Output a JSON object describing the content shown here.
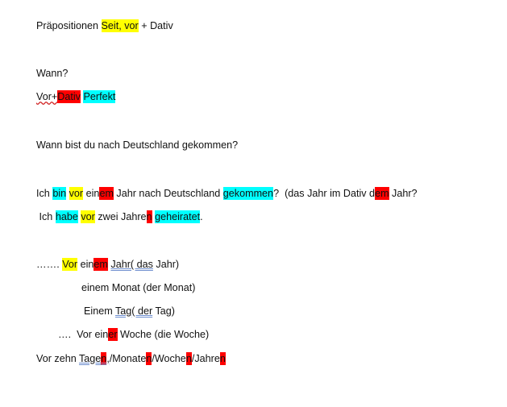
{
  "lines": [
    {
      "segments": [
        {
          "t": "Präpositionen "
        },
        {
          "t": "Seit, vor",
          "hl": "y"
        },
        {
          "t": " + Dativ"
        }
      ]
    },
    {
      "segments": [
        {
          "t": "Wann?"
        }
      ]
    },
    {
      "segments": [
        {
          "t": "Vor+",
          "ul": "wavy"
        },
        {
          "t": "Dativ",
          "hl": "r"
        },
        {
          "t": " "
        },
        {
          "t": "Perfekt",
          "hl": "c"
        }
      ]
    },
    {
      "segments": [
        {
          "t": "Wann bist du nach Deutschland gekommen?"
        }
      ]
    },
    {
      "segments": [
        {
          "t": "Ich "
        },
        {
          "t": "bin",
          "hl": "c"
        },
        {
          "t": " "
        },
        {
          "t": "vor",
          "hl": "y"
        },
        {
          "t": " ein"
        },
        {
          "t": "em",
          "hl": "r"
        },
        {
          "t": " Jahr nach Deutschland "
        },
        {
          "t": "gekommen",
          "hl": "c"
        },
        {
          "t": "?  (das Jahr im Dativ d"
        },
        {
          "t": "em",
          "hl": "r"
        },
        {
          "t": " Jahr?"
        }
      ]
    },
    {
      "segments": [
        {
          "t": " Ich "
        },
        {
          "t": "habe",
          "hl": "c"
        },
        {
          "t": " "
        },
        {
          "t": "vor",
          "hl": "y"
        },
        {
          "t": " zwei Jahre"
        },
        {
          "t": "n",
          "hl": "r"
        },
        {
          "t": " "
        },
        {
          "t": "geheiratet",
          "hl": "c"
        },
        {
          "t": "."
        }
      ]
    },
    {
      "segments": [
        {
          "t": "……. "
        },
        {
          "t": "Vor",
          "hl": "y"
        },
        {
          "t": " ein"
        },
        {
          "t": "em",
          "hl": "r"
        },
        {
          "t": " "
        },
        {
          "t": "Jahr( das",
          "ul": "dbl"
        },
        {
          "t": " Jahr)"
        }
      ]
    },
    {
      "segments": [
        {
          "t": "einem Monat (der Monat)"
        }
      ]
    },
    {
      "segments": [
        {
          "t": "Einem "
        },
        {
          "t": "Tag( der",
          "ul": "dbl"
        },
        {
          "t": " Tag)"
        }
      ]
    },
    {
      "segments": [
        {
          "t": "….  Vor ein"
        },
        {
          "t": "er",
          "hl": "r"
        },
        {
          "t": " Woche (die Woche)"
        }
      ]
    },
    {
      "segments": [
        {
          "t": "Vor zehn "
        },
        {
          "t": "Tage",
          "ul": "dbl"
        },
        {
          "t": "n",
          "hl": "r",
          "ul": "dbl"
        },
        {
          "t": ",",
          "ul": "dbl"
        },
        {
          "t": "/Monate"
        },
        {
          "t": "n",
          "hl": "r"
        },
        {
          "t": "/Woche"
        },
        {
          "t": "n",
          "hl": "r"
        },
        {
          "t": "/Jahre"
        },
        {
          "t": "n",
          "hl": "r"
        }
      ]
    }
  ],
  "colors": {
    "yellow": "#ffff00",
    "red": "#ff0000",
    "cyan": "#00ffff"
  }
}
